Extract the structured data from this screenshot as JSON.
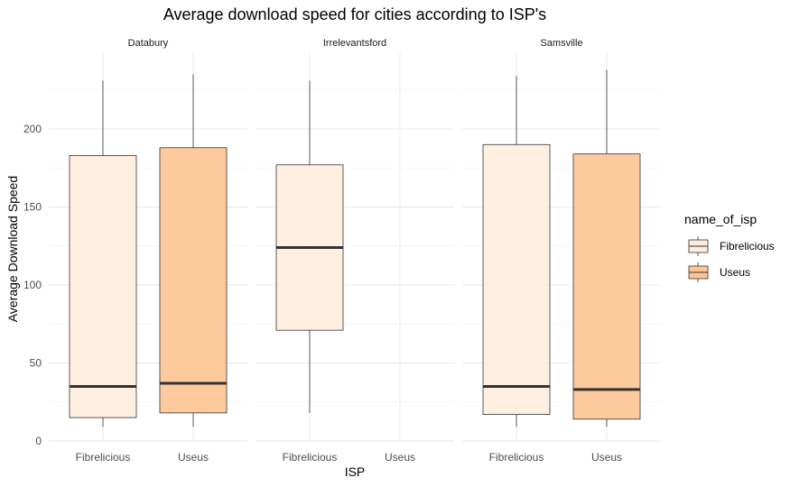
{
  "chart_data": {
    "type": "boxplot",
    "title": "Average download speed for cities according to ISP's",
    "xlabel": "ISP",
    "ylabel": "Average Download Speed",
    "ylim": [
      0,
      245
    ],
    "y_ticks": [
      0,
      50,
      100,
      150,
      200
    ],
    "categories": [
      "Fibrelicious",
      "Useus"
    ],
    "grid": true,
    "legend": {
      "title": "name_of_isp",
      "position": "right",
      "items": [
        {
          "label": "Fibrelicious",
          "color": "#FEEDDE"
        },
        {
          "label": "Useus",
          "color": "#FDC494"
        }
      ]
    },
    "panels": [
      {
        "name": "Databury",
        "boxes": [
          {
            "isp": "Fibrelicious",
            "min": 9,
            "q1": 15,
            "median": 35,
            "q3": 183,
            "max": 231
          },
          {
            "isp": "Useus",
            "min": 9,
            "q1": 18,
            "median": 37,
            "q3": 188,
            "max": 235
          }
        ]
      },
      {
        "name": "Irrelevantsford",
        "boxes": [
          {
            "isp": "Fibrelicious",
            "min": 18,
            "q1": 71,
            "median": 124,
            "q3": 177,
            "max": 231
          }
        ]
      },
      {
        "name": "Samsville",
        "boxes": [
          {
            "isp": "Fibrelicious",
            "min": 9,
            "q1": 17,
            "median": 35,
            "q3": 190,
            "max": 234
          },
          {
            "isp": "Useus",
            "min": 9,
            "q1": 14,
            "median": 33,
            "q3": 184,
            "max": 238
          }
        ]
      }
    ]
  }
}
